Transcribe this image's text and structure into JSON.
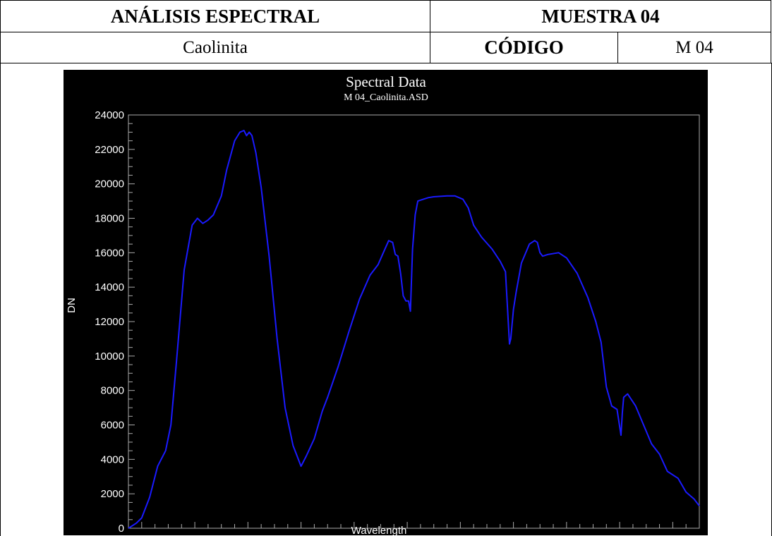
{
  "header": {
    "title": "ANÁLISIS ESPECTRAL",
    "sample": "MUESTRA 04",
    "mineral": "Caolinita",
    "code_label": "CÓDIGO",
    "code_value": "M 04"
  },
  "colors": {
    "background": "#000000",
    "line": "#1a1aff",
    "text": "#ffffff",
    "frame": "#aaaaaa"
  },
  "chart_data": {
    "type": "line",
    "title": "Spectral Data",
    "subtitle": "M 04_Caolinita.ASD",
    "xlabel": "Wavelength",
    "ylabel": "DN",
    "xlim": [
      350,
      2500
    ],
    "ylim": [
      0,
      24000
    ],
    "xticks": [
      "400",
      "600",
      "800",
      "1000",
      "1200",
      "1400",
      "1600",
      "1800",
      "2000",
      "2200",
      "2400"
    ],
    "yticks": [
      "0",
      "2000",
      "4000",
      "6000",
      "8000",
      "10000",
      "12000",
      "14000",
      "16000",
      "18000",
      "20000",
      "22000",
      "24000"
    ],
    "grid": false,
    "series": [
      {
        "x": [
          350,
          380,
          400,
          430,
          460,
          490,
          510,
          530,
          560,
          590,
          610,
          630,
          650,
          670,
          700,
          720,
          750,
          770,
          785,
          795,
          805,
          815,
          830,
          850,
          880,
          910,
          940,
          970,
          1000,
          1020,
          1050,
          1080,
          1100,
          1140,
          1180,
          1220,
          1260,
          1290,
          1310,
          1330,
          1345,
          1355,
          1365,
          1375,
          1385,
          1395,
          1405,
          1412,
          1420,
          1430,
          1440,
          1460,
          1480,
          1500,
          1550,
          1580,
          1610,
          1630,
          1650,
          1680,
          1720,
          1750,
          1770,
          1785,
          1790,
          1800,
          1810,
          1830,
          1860,
          1880,
          1890,
          1900,
          1910,
          1930,
          1970,
          2000,
          2040,
          2080,
          2110,
          2130,
          2150,
          2170,
          2190,
          2205,
          2210,
          2215,
          2230,
          2260,
          2290,
          2320,
          2350,
          2380,
          2420,
          2450,
          2480,
          2500
        ],
        "y": [
          0,
          300,
          600,
          1800,
          3600,
          4500,
          6000,
          9500,
          15000,
          17600,
          18000,
          17700,
          17900,
          18200,
          19300,
          20800,
          22500,
          23000,
          23100,
          22800,
          23000,
          22800,
          21800,
          19800,
          15800,
          11000,
          7000,
          4800,
          3600,
          4200,
          5200,
          6800,
          7600,
          9400,
          11400,
          13300,
          14700,
          15300,
          16000,
          16700,
          16600,
          15900,
          15800,
          14800,
          13500,
          13200,
          13200,
          12600,
          16200,
          18200,
          19000,
          19100,
          19200,
          19250,
          19300,
          19300,
          19100,
          18600,
          17600,
          16900,
          16200,
          15500,
          14900,
          10700,
          11000,
          12700,
          13700,
          15400,
          16500,
          16700,
          16600,
          16000,
          15800,
          15900,
          16000,
          15700,
          14800,
          13400,
          12000,
          10800,
          8200,
          7100,
          6900,
          5400,
          6700,
          7600,
          7800,
          7100,
          6000,
          4900,
          4300,
          3300,
          2900,
          2100,
          1700,
          1300
        ]
      }
    ]
  }
}
